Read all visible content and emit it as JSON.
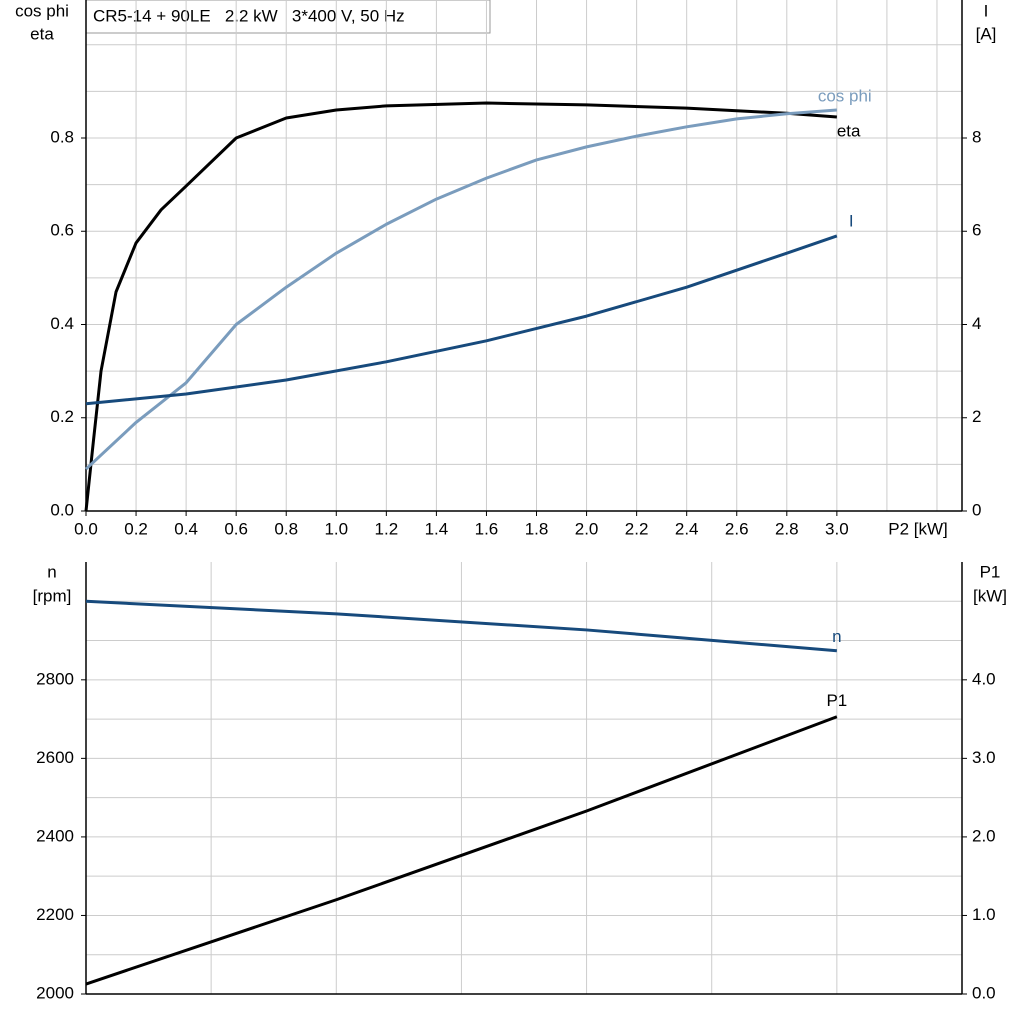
{
  "chart_data": [
    {
      "type": "line",
      "title": "CR5-14 + 90LE   2.2 kW   3*400 V, 50 Hz",
      "x_label": "P2 [kW]",
      "y_label": [
        "cos phi",
        "eta"
      ],
      "y2_label": [
        "I",
        "[A]"
      ],
      "xlim": [
        0,
        3.5
      ],
      "xticks": [
        {
          "value": 0,
          "label": "0.0"
        },
        0.2,
        0.4,
        0.6,
        0.8,
        {
          "value": 1,
          "label": "1.0"
        },
        1.2,
        1.4,
        1.6,
        1.8,
        {
          "value": 2,
          "label": "2.0"
        },
        2.2,
        2.4,
        2.6,
        2.8,
        {
          "value": 3,
          "label": "3.0"
        }
      ],
      "ylim": [
        0,
        1.096
      ],
      "yticks": [
        {
          "value": 0,
          "label": "0.0"
        },
        0.2,
        0.4,
        0.6,
        0.8
      ],
      "y2lim": [
        0,
        10.96
      ],
      "y2ticks": [
        0,
        2,
        4,
        6,
        8
      ],
      "xgrid": [
        0.2,
        0.4,
        0.6,
        0.8,
        1.0,
        1.2,
        1.4,
        1.6,
        1.8,
        2.0,
        2.2,
        2.4,
        2.6,
        2.8,
        3.0,
        3.2,
        3.4
      ],
      "ygrid": [
        0.1,
        0.2,
        0.3,
        0.4,
        0.5,
        0.6,
        0.7,
        0.8,
        0.9,
        1.0
      ],
      "series": [
        {
          "name": "eta",
          "color": "#000000",
          "x": [
            0,
            0.03,
            0.06,
            0.12,
            0.2,
            0.3,
            0.4,
            0.6,
            0.8,
            1.0,
            1.2,
            1.6,
            2.0,
            2.4,
            2.8,
            3.0
          ],
          "values": [
            0,
            0.152,
            0.3,
            0.47,
            0.575,
            0.646,
            0.697,
            0.8,
            0.843,
            0.86,
            0.869,
            0.875,
            0.871,
            0.864,
            0.853,
            0.845
          ]
        },
        {
          "name": "cos phi",
          "color": "#7a9cbd",
          "x": [
            0,
            0.2,
            0.4,
            0.6,
            0.8,
            1.0,
            1.2,
            1.4,
            1.6,
            1.8,
            2.0,
            2.2,
            2.4,
            2.6,
            2.8,
            3.0
          ],
          "values": [
            0.09,
            0.19,
            0.275,
            0.4,
            0.48,
            0.553,
            0.615,
            0.669,
            0.714,
            0.753,
            0.781,
            0.804,
            0.824,
            0.841,
            0.852,
            0.86
          ]
        },
        {
          "name": "I",
          "color": "#174a7c",
          "axis": "y2",
          "x": [
            0,
            0.4,
            0.8,
            1.2,
            1.6,
            2.0,
            2.4,
            2.8,
            3.0
          ],
          "values": [
            2.3,
            2.51,
            2.81,
            3.2,
            3.65,
            4.18,
            4.8,
            5.53,
            5.9
          ]
        }
      ]
    },
    {
      "type": "line",
      "y_label": [
        "n",
        "[rpm]"
      ],
      "y2_label": [
        "P1",
        "[kW]"
      ],
      "xlim": [
        0,
        3.5
      ],
      "ylim": [
        2000,
        3100
      ],
      "yticks": [
        2000,
        2200,
        2400,
        2600,
        2800
      ],
      "y2lim": [
        0,
        5.5
      ],
      "y2ticks": [
        {
          "value": 0,
          "label": "0.0"
        },
        {
          "value": 1,
          "label": "1.0"
        },
        {
          "value": 2,
          "label": "2.0"
        },
        {
          "value": 3,
          "label": "3.0"
        },
        {
          "value": 4,
          "label": "4.0"
        }
      ],
      "xgrid": [
        0.5,
        1.0,
        1.5,
        2.0,
        2.5,
        3.0
      ],
      "ygrid": [
        2100,
        2200,
        2300,
        2400,
        2500,
        2600,
        2700,
        2800,
        2900,
        3000
      ],
      "series": [
        {
          "name": "n",
          "color": "#174a7c",
          "x": [
            0,
            1.0,
            2.0,
            3.0
          ],
          "values": [
            3000,
            2968,
            2927,
            2874
          ]
        },
        {
          "name": "P1",
          "color": "#000000",
          "axis": "y2",
          "x": [
            0,
            1.0,
            2.0,
            3.0
          ],
          "values": [
            0.127,
            1.2,
            2.33,
            3.53
          ]
        }
      ]
    }
  ]
}
